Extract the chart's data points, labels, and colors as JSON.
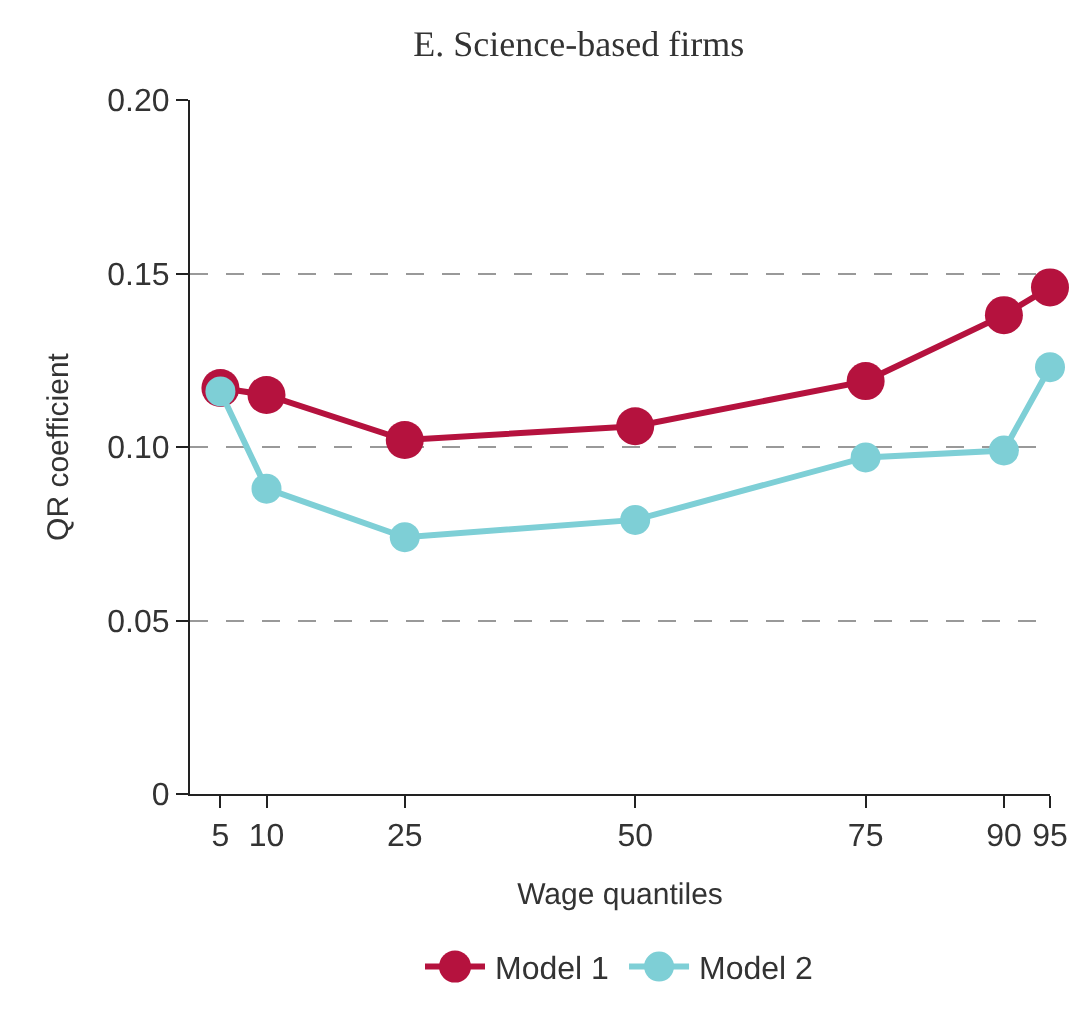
{
  "chart_data": {
    "type": "line",
    "title": "E. Science-based firms",
    "xlabel": "Wage quantiles",
    "ylabel": "QR coefficient",
    "x": [
      5,
      10,
      25,
      50,
      75,
      90,
      95
    ],
    "series": [
      {
        "name": "Model 1",
        "color": "#b5123e",
        "values": [
          0.117,
          0.115,
          0.102,
          0.106,
          0.119,
          0.138,
          0.146
        ]
      },
      {
        "name": "Model 2",
        "color": "#7ecfd6",
        "values": [
          0.116,
          0.088,
          0.074,
          0.079,
          0.097,
          0.099,
          0.123
        ]
      }
    ],
    "xlim": [
      1.7,
      95
    ],
    "xticks": [
      5,
      10,
      25,
      50,
      75,
      90,
      95
    ],
    "ylim": [
      0,
      0.2
    ],
    "yticks": [
      {
        "value": 0,
        "label": "0"
      },
      {
        "value": 0.05,
        "label": "0.05"
      },
      {
        "value": 0.1,
        "label": "0.10"
      },
      {
        "value": 0.15,
        "label": "0.15"
      },
      {
        "value": 0.2,
        "label": "0.20"
      }
    ],
    "grid": "y",
    "legend": "bottom",
    "marker": "circle",
    "line_style": "solid"
  }
}
